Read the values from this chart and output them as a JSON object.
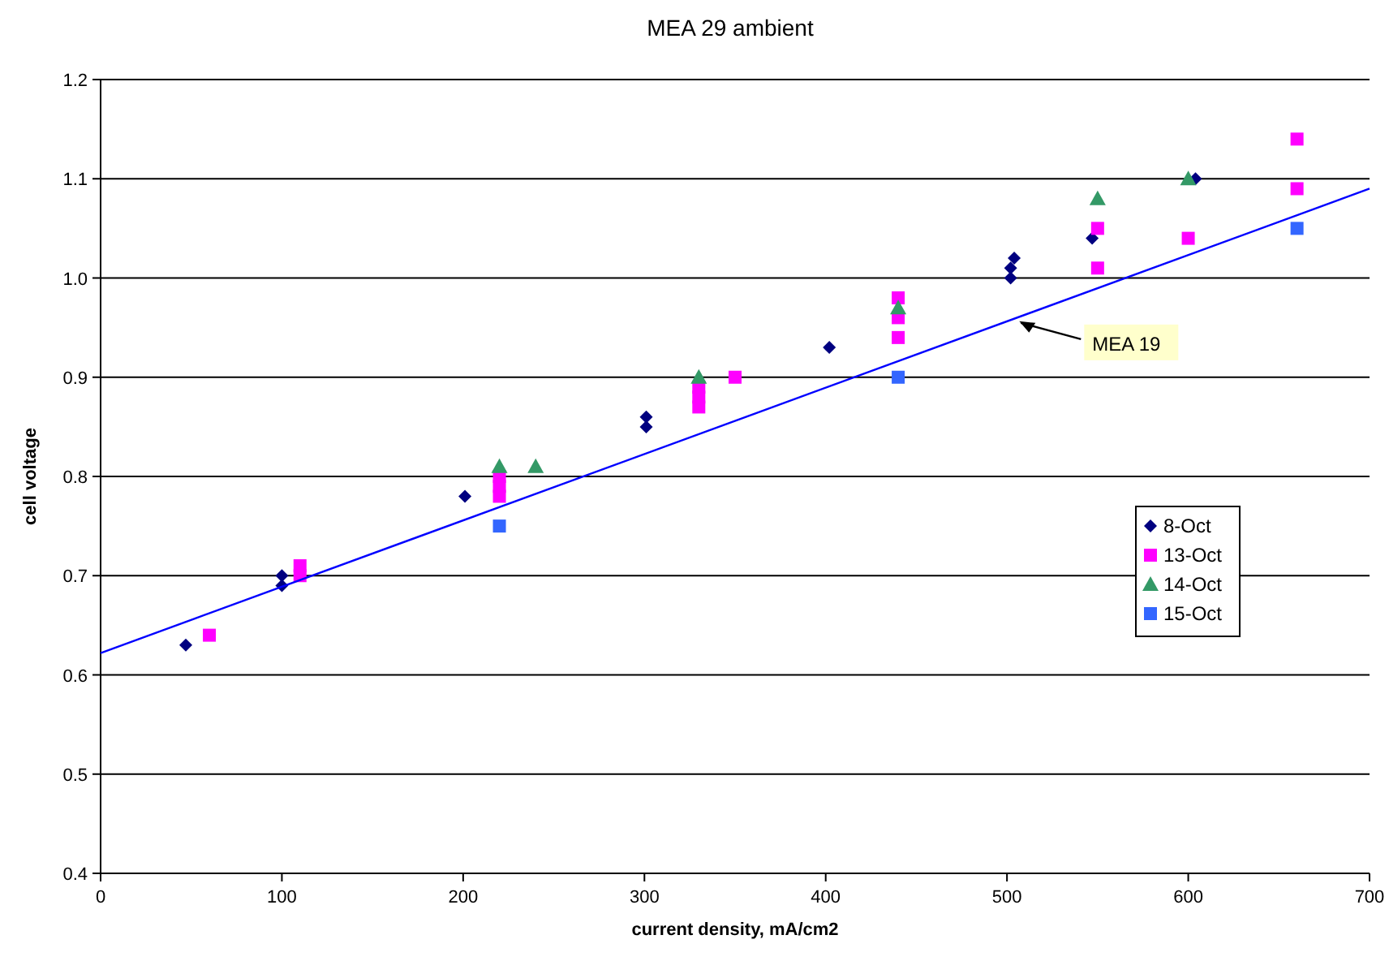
{
  "chart_data": {
    "type": "scatter",
    "title": "MEA 29 ambient",
    "xlabel": "current density, mA/cm2",
    "ylabel": "cell voltage",
    "xlim": [
      0,
      700
    ],
    "xticks": [
      0,
      100,
      200,
      300,
      400,
      500,
      600,
      700
    ],
    "ylim": [
      0.4,
      1.2
    ],
    "yticks": [
      {
        "value": 0.4,
        "label": "0.4"
      },
      {
        "value": 0.5,
        "label": "0.5"
      },
      {
        "value": 0.6,
        "label": "0.6"
      },
      {
        "value": 0.7,
        "label": "0.7"
      },
      {
        "value": 0.8,
        "label": "0.8"
      },
      {
        "value": 0.9,
        "label": "0.9"
      },
      {
        "value": 1.0,
        "label": "1.0"
      },
      {
        "value": 1.1,
        "label": "1.1"
      },
      {
        "value": 1.2,
        "label": "1.2"
      }
    ],
    "grid": "y",
    "legend": "right",
    "annotations": [
      {
        "text": "MEA 19",
        "x": 505,
        "y": 0.958
      }
    ],
    "series": [
      {
        "name": "8-Oct",
        "color": "#000080",
        "marker": "diamond",
        "x": [
          47,
          100,
          100,
          201,
          301,
          301,
          402,
          502,
          502,
          504,
          547,
          604
        ],
        "values": [
          0.63,
          0.69,
          0.7,
          0.78,
          0.85,
          0.86,
          0.93,
          1.0,
          1.01,
          1.02,
          1.04,
          1.1
        ]
      },
      {
        "name": "13-Oct",
        "color": "#ff00ff",
        "marker": "square",
        "x": [
          60,
          110,
          110,
          220,
          220,
          220,
          330,
          330,
          330,
          350,
          440,
          440,
          440,
          550,
          550,
          600,
          660,
          660
        ],
        "values": [
          0.64,
          0.7,
          0.71,
          0.78,
          0.79,
          0.8,
          0.87,
          0.88,
          0.89,
          0.9,
          0.94,
          0.96,
          0.98,
          1.01,
          1.05,
          1.04,
          1.09,
          1.14
        ]
      },
      {
        "name": "14-Oct",
        "color": "#339966",
        "marker": "triangle",
        "x": [
          220,
          240,
          330,
          440,
          550,
          600
        ],
        "values": [
          0.81,
          0.81,
          0.9,
          0.97,
          1.08,
          1.1
        ]
      },
      {
        "name": "15-Oct",
        "color": "#3366ff",
        "marker": "square",
        "x": [
          220,
          440,
          660
        ],
        "values": [
          0.75,
          0.9,
          1.05
        ]
      },
      {
        "type": "line",
        "color": "#0000ff",
        "marker": "none",
        "x": [
          0,
          700
        ],
        "values": [
          0.622,
          1.09
        ]
      }
    ]
  }
}
